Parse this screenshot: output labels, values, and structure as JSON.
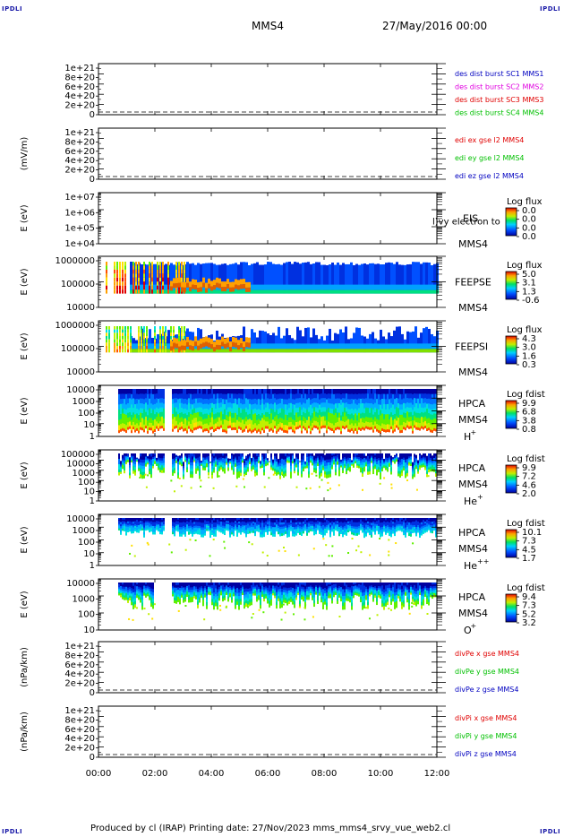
{
  "header": {
    "corner_tl": "IPDLI",
    "corner_tr": "IPDLI",
    "corner_bl": "IPDLI",
    "corner_br": "IPDLI",
    "spacecraft": "MMS4",
    "date": "27/May/2016 00:00"
  },
  "footer": {
    "text": "Produced by cl (IRAP)   Printing date: 27/Nov/2023   mms_mms4_srvy_vue_web2.cl"
  },
  "time_axis": {
    "ticks": [
      "00:00",
      "02:00",
      "04:00",
      "06:00",
      "08:00",
      "10:00",
      "12:00"
    ]
  },
  "colors": {
    "frame": "#000000",
    "series_red": "#e00000",
    "series_magenta": "#e000e0",
    "series_green": "#00c000",
    "series_blue": "#0000c0"
  },
  "chart_data": [
    {
      "type": "line",
      "panel": "des-dist-burst",
      "ylabel": "",
      "yticks": [
        "1e+21",
        "8e+20",
        "6e+20",
        "4e+20",
        "2e+20",
        "0"
      ],
      "series": [
        {
          "name": "des dist burst SC1 MMS1",
          "color": "#0000c0",
          "values": []
        },
        {
          "name": "des dist burst SC2 MMS2",
          "color": "#e000e0",
          "values": []
        },
        {
          "name": "des dist burst SC3 MMS3",
          "color": "#e00000",
          "values": []
        },
        {
          "name": "des dist burst SC4 MMS4",
          "color": "#00c000",
          "values": []
        }
      ]
    },
    {
      "type": "line",
      "panel": "edi",
      "ylabel": "(mV/m)",
      "yticks": [
        "1e+21",
        "8e+20",
        "6e+20",
        "4e+20",
        "2e+20",
        "0"
      ],
      "series": [
        {
          "name": "edi ex gse l2 MMS4",
          "color": "#e00000",
          "values": []
        },
        {
          "name": "edi ey gse l2 MMS4",
          "color": "#00c000",
          "values": []
        },
        {
          "name": "edi ez gse l2 MMS4",
          "color": "#0000c0",
          "values": []
        }
      ]
    },
    {
      "type": "heatmap",
      "panel": "eis",
      "ylabel": "E (eV)",
      "yticks": [
        "1e+07",
        "1e+06",
        "1e+05",
        "1e+04"
      ],
      "instrument": "EIS",
      "label2": "MMS4",
      "note": "l)vy electron to",
      "colorbar": {
        "title": "Log flux",
        "ticks": [
          "0.0",
          "0.0",
          "0.0",
          "0.0"
        ]
      }
    },
    {
      "type": "heatmap",
      "panel": "feepse",
      "ylabel": "E (eV)",
      "yticks": [
        "1000000",
        "100000",
        "10000"
      ],
      "instrument": "FEEPSE",
      "label2": "MMS4",
      "colorbar": {
        "title": "Log flux",
        "ticks": [
          "5.0",
          "3.1",
          "1.3",
          "-0.6"
        ]
      }
    },
    {
      "type": "heatmap",
      "panel": "feepsi",
      "ylabel": "E (eV)",
      "yticks": [
        "1000000",
        "100000",
        "10000"
      ],
      "instrument": "FEEPSI",
      "label2": "MMS4",
      "colorbar": {
        "title": "Log flux",
        "ticks": [
          "4.3",
          "3.0",
          "1.6",
          "0.3"
        ]
      }
    },
    {
      "type": "heatmap",
      "panel": "hpca-h",
      "ylabel": "E (eV)",
      "yticks": [
        "10000",
        "1000",
        "100",
        "10",
        "1"
      ],
      "instrument": "HPCA",
      "label2": "MMS4",
      "species": "H",
      "charge": "+",
      "colorbar": {
        "title": "Log fdist",
        "ticks": [
          "9.9",
          "6.8",
          "3.8",
          "0.8"
        ]
      }
    },
    {
      "type": "heatmap",
      "panel": "hpca-he",
      "ylabel": "E (eV)",
      "yticks": [
        "100000",
        "10000",
        "1000",
        "100",
        "10",
        "1"
      ],
      "instrument": "HPCA",
      "label2": "MMS4",
      "species": "He",
      "charge": "+",
      "colorbar": {
        "title": "Log fdist",
        "ticks": [
          "9.9",
          "7.2",
          "4.6",
          "2.0"
        ]
      }
    },
    {
      "type": "heatmap",
      "panel": "hpca-hepp",
      "ylabel": "E (eV)",
      "yticks": [
        "10000",
        "1000",
        "100",
        "10",
        "1"
      ],
      "instrument": "HPCA",
      "label2": "MMS4",
      "species": "He",
      "charge": "++",
      "colorbar": {
        "title": "Log fdist",
        "ticks": [
          "10.1",
          "7.3",
          "4.5",
          "1.7"
        ]
      }
    },
    {
      "type": "heatmap",
      "panel": "hpca-o",
      "ylabel": "E (eV)",
      "yticks": [
        "10000",
        "1000",
        "100",
        "10"
      ],
      "instrument": "HPCA",
      "label2": "MMS4",
      "species": "O",
      "charge": "+",
      "colorbar": {
        "title": "Log fdist",
        "ticks": [
          "9.4",
          "7.3",
          "5.2",
          "3.2"
        ]
      }
    },
    {
      "type": "line",
      "panel": "divpe",
      "ylabel": "(nPa/km)",
      "yticks": [
        "1e+21",
        "8e+20",
        "6e+20",
        "4e+20",
        "2e+20",
        "0"
      ],
      "series": [
        {
          "name": "divPe x gse MMS4",
          "color": "#e00000",
          "values": []
        },
        {
          "name": "divPe y gse MMS4",
          "color": "#00c000",
          "values": []
        },
        {
          "name": "divPe z gse MMS4",
          "color": "#0000c0",
          "values": []
        }
      ]
    },
    {
      "type": "line",
      "panel": "divpi",
      "ylabel": "(nPa/km)",
      "yticks": [
        "1e+21",
        "8e+20",
        "6e+20",
        "4e+20",
        "2e+20",
        "0"
      ],
      "series": [
        {
          "name": "divPi x gse MMS4",
          "color": "#e00000",
          "values": []
        },
        {
          "name": "divPi y gse MMS4",
          "color": "#00c000",
          "values": []
        },
        {
          "name": "divPi z gse MMS4",
          "color": "#0000c0",
          "values": []
        }
      ]
    }
  ]
}
